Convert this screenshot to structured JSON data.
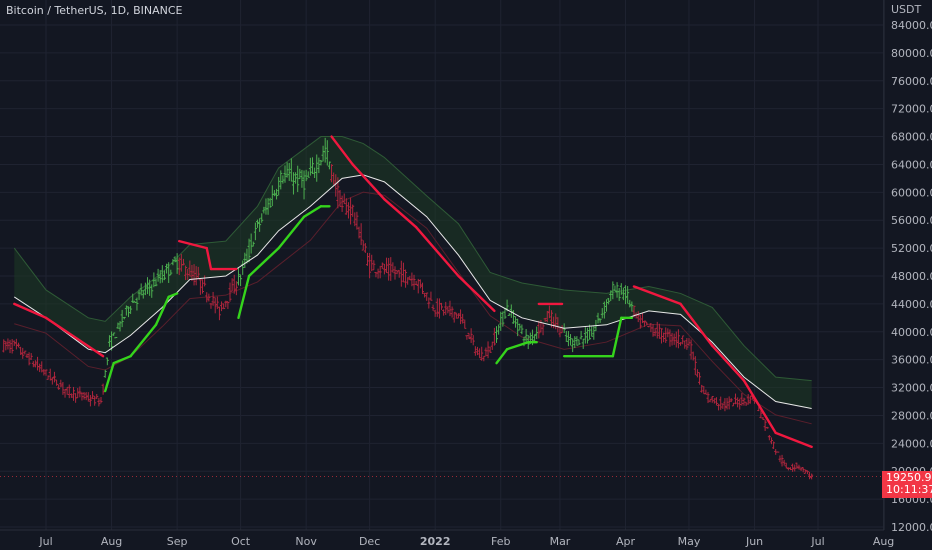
{
  "header": {
    "symbol_line": "Bitcoin / TetherUS, 1D, BINANCE",
    "currency": "USDT"
  },
  "price_tag": {
    "price": "19250.91",
    "countdown": "10:11:37"
  },
  "colors": {
    "background": "#131722",
    "up_bar": "#4caf50",
    "down_bar": "#b0263d",
    "trend_up": "#35d41c",
    "trend_down": "#f0183f",
    "mid_line": "#e8e8e8",
    "upper_band_fill": "#1e3b24",
    "lower_band_fill": "#3a1620",
    "tag": "#f23645"
  },
  "chart_data": {
    "type": "candlestick",
    "title": "Bitcoin / TetherUS, 1D, BINANCE",
    "ylabel": "USDT",
    "ylim": [
      12000,
      86000
    ],
    "y_ticks": [
      "84000.00",
      "80000.00",
      "76000.00",
      "72000.00",
      "68000.00",
      "64000.00",
      "60000.00",
      "56000.00",
      "52000.00",
      "48000.00",
      "44000.00",
      "40000.00",
      "36000.00",
      "32000.00",
      "28000.00",
      "24000.00",
      "20000.00",
      "16000.00",
      "12000.00"
    ],
    "x_ticks": [
      "Jul",
      "Aug",
      "Sep",
      "Oct",
      "Nov",
      "Dec",
      "2022",
      "Feb",
      "Mar",
      "Apr",
      "May",
      "Jun",
      "Jul",
      "Aug"
    ],
    "x_tick_day": [
      0,
      31,
      62,
      92,
      123,
      153,
      184,
      215,
      243,
      274,
      304,
      335,
      365,
      396
    ],
    "last_price": 19250.91,
    "price_series": [
      {
        "day": -15,
        "price": 38000
      },
      {
        "day": 0,
        "price": 34000
      },
      {
        "day": 10,
        "price": 31500
      },
      {
        "day": 20,
        "price": 30500
      },
      {
        "day": 26,
        "price": 30000
      },
      {
        "day": 30,
        "price": 38000
      },
      {
        "day": 40,
        "price": 44000
      },
      {
        "day": 55,
        "price": 48000
      },
      {
        "day": 62,
        "price": 50000
      },
      {
        "day": 72,
        "price": 47500
      },
      {
        "day": 82,
        "price": 43000
      },
      {
        "day": 92,
        "price": 48000
      },
      {
        "day": 100,
        "price": 55000
      },
      {
        "day": 112,
        "price": 62500
      },
      {
        "day": 123,
        "price": 61500
      },
      {
        "day": 132,
        "price": 66000
      },
      {
        "day": 140,
        "price": 58000
      },
      {
        "day": 145,
        "price": 57500
      },
      {
        "day": 153,
        "price": 49500
      },
      {
        "day": 165,
        "price": 48500
      },
      {
        "day": 175,
        "price": 47500
      },
      {
        "day": 184,
        "price": 43500
      },
      {
        "day": 195,
        "price": 42500
      },
      {
        "day": 205,
        "price": 36500
      },
      {
        "day": 210,
        "price": 37500
      },
      {
        "day": 218,
        "price": 43500
      },
      {
        "day": 228,
        "price": 38500
      },
      {
        "day": 238,
        "price": 42500
      },
      {
        "day": 248,
        "price": 38500
      },
      {
        "day": 258,
        "price": 39500
      },
      {
        "day": 268,
        "price": 46000
      },
      {
        "day": 274,
        "price": 45500
      },
      {
        "day": 280,
        "price": 41500
      },
      {
        "day": 292,
        "price": 39500
      },
      {
        "day": 304,
        "price": 38500
      },
      {
        "day": 311,
        "price": 31000
      },
      {
        "day": 320,
        "price": 29500
      },
      {
        "day": 335,
        "price": 30500
      },
      {
        "day": 345,
        "price": 23000
      },
      {
        "day": 350,
        "price": 20500
      },
      {
        "day": 356,
        "price": 20800
      },
      {
        "day": 362,
        "price": 19250
      }
    ],
    "upper_band": [
      {
        "day": -15,
        "price": 52000
      },
      {
        "day": 0,
        "price": 46000
      },
      {
        "day": 20,
        "price": 42000
      },
      {
        "day": 28,
        "price": 41500
      },
      {
        "day": 40,
        "price": 45000
      },
      {
        "day": 55,
        "price": 48500
      },
      {
        "day": 68,
        "price": 52500
      },
      {
        "day": 85,
        "price": 53000
      },
      {
        "day": 100,
        "price": 58000
      },
      {
        "day": 110,
        "price": 63500
      },
      {
        "day": 130,
        "price": 68000
      },
      {
        "day": 140,
        "price": 68000
      },
      {
        "day": 150,
        "price": 67000
      },
      {
        "day": 160,
        "price": 65000
      },
      {
        "day": 180,
        "price": 59500
      },
      {
        "day": 195,
        "price": 55500
      },
      {
        "day": 210,
        "price": 48500
      },
      {
        "day": 225,
        "price": 47000
      },
      {
        "day": 245,
        "price": 46000
      },
      {
        "day": 265,
        "price": 45500
      },
      {
        "day": 285,
        "price": 46500
      },
      {
        "day": 300,
        "price": 45500
      },
      {
        "day": 315,
        "price": 43500
      },
      {
        "day": 330,
        "price": 38000
      },
      {
        "day": 345,
        "price": 33500
      },
      {
        "day": 362,
        "price": 33000
      }
    ],
    "mid_line": [
      {
        "day": -15,
        "price": 45000
      },
      {
        "day": 0,
        "price": 42000
      },
      {
        "day": 20,
        "price": 37500
      },
      {
        "day": 28,
        "price": 37000
      },
      {
        "day": 40,
        "price": 39500
      },
      {
        "day": 55,
        "price": 43500
      },
      {
        "day": 68,
        "price": 47500
      },
      {
        "day": 85,
        "price": 48000
      },
      {
        "day": 100,
        "price": 51000
      },
      {
        "day": 110,
        "price": 54500
      },
      {
        "day": 125,
        "price": 58000
      },
      {
        "day": 140,
        "price": 62000
      },
      {
        "day": 150,
        "price": 62500
      },
      {
        "day": 160,
        "price": 61500
      },
      {
        "day": 180,
        "price": 56500
      },
      {
        "day": 195,
        "price": 51000
      },
      {
        "day": 210,
        "price": 44500
      },
      {
        "day": 225,
        "price": 42000
      },
      {
        "day": 245,
        "price": 40500
      },
      {
        "day": 265,
        "price": 41000
      },
      {
        "day": 285,
        "price": 43000
      },
      {
        "day": 300,
        "price": 42500
      },
      {
        "day": 315,
        "price": 38500
      },
      {
        "day": 330,
        "price": 33500
      },
      {
        "day": 345,
        "price": 30000
      },
      {
        "day": 362,
        "price": 29000
      }
    ],
    "supertrend": [
      {
        "day": -15,
        "price": 44000,
        "trend": "down"
      },
      {
        "day": 0,
        "price": 42000,
        "trend": "down"
      },
      {
        "day": 27,
        "price": 36500,
        "trend": "down"
      },
      {
        "day": 28,
        "price": 31500,
        "trend": "up"
      },
      {
        "day": 32,
        "price": 35500,
        "trend": "up"
      },
      {
        "day": 40,
        "price": 36500,
        "trend": "up"
      },
      {
        "day": 52,
        "price": 41000,
        "trend": "up"
      },
      {
        "day": 58,
        "price": 45000,
        "trend": "up"
      },
      {
        "day": 62,
        "price": 45500,
        "trend": "up"
      },
      {
        "day": 63,
        "price": 53000,
        "trend": "down"
      },
      {
        "day": 76,
        "price": 52000,
        "trend": "down"
      },
      {
        "day": 78,
        "price": 49000,
        "trend": "down"
      },
      {
        "day": 90,
        "price": 49000,
        "trend": "down"
      },
      {
        "day": 91,
        "price": 42000,
        "trend": "up"
      },
      {
        "day": 96,
        "price": 48000,
        "trend": "up"
      },
      {
        "day": 110,
        "price": 52000,
        "trend": "up"
      },
      {
        "day": 122,
        "price": 56500,
        "trend": "up"
      },
      {
        "day": 130,
        "price": 58000,
        "trend": "up"
      },
      {
        "day": 134,
        "price": 58000,
        "trend": "up"
      },
      {
        "day": 135,
        "price": 68000,
        "trend": "down"
      },
      {
        "day": 145,
        "price": 64000,
        "trend": "down"
      },
      {
        "day": 160,
        "price": 59000,
        "trend": "down"
      },
      {
        "day": 175,
        "price": 55000,
        "trend": "down"
      },
      {
        "day": 195,
        "price": 48000,
        "trend": "down"
      },
      {
        "day": 212,
        "price": 43000,
        "trend": "down"
      },
      {
        "day": 213,
        "price": 35500,
        "trend": "up"
      },
      {
        "day": 218,
        "price": 37500,
        "trend": "up"
      },
      {
        "day": 228,
        "price": 38500,
        "trend": "up"
      },
      {
        "day": 232,
        "price": 38500,
        "trend": "up"
      },
      {
        "day": 233,
        "price": 44000,
        "trend": "down"
      },
      {
        "day": 244,
        "price": 44000,
        "trend": "down"
      },
      {
        "day": 245,
        "price": 36500,
        "trend": "up"
      },
      {
        "day": 268,
        "price": 36500,
        "trend": "up"
      },
      {
        "day": 272,
        "price": 42000,
        "trend": "up"
      },
      {
        "day": 277,
        "price": 42000,
        "trend": "up"
      },
      {
        "day": 278,
        "price": 46500,
        "trend": "down"
      },
      {
        "day": 300,
        "price": 44000,
        "trend": "down"
      },
      {
        "day": 315,
        "price": 38000,
        "trend": "down"
      },
      {
        "day": 330,
        "price": 33000,
        "trend": "down"
      },
      {
        "day": 345,
        "price": 25500,
        "trend": "down"
      },
      {
        "day": 362,
        "price": 23500,
        "trend": "down"
      }
    ]
  }
}
